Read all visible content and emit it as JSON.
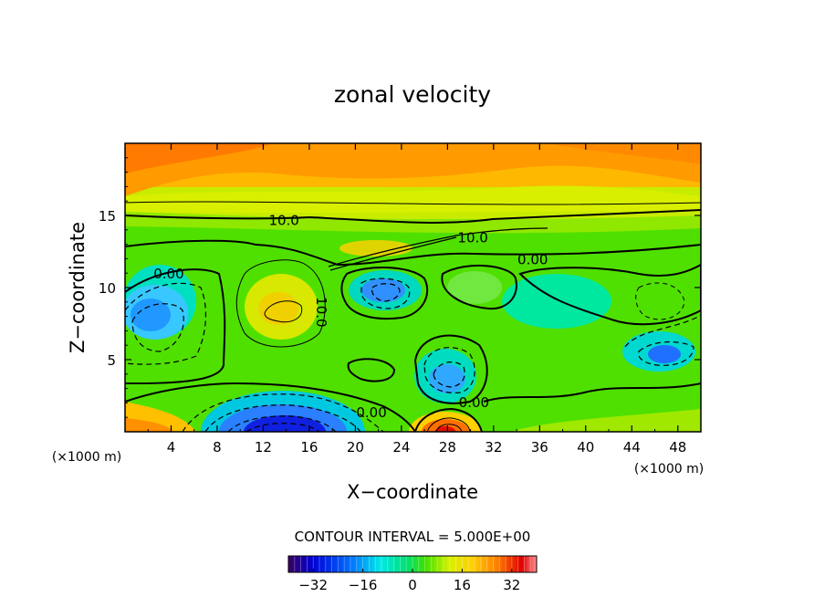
{
  "chart_data": {
    "type": "heatmap",
    "title": "zonal velocity",
    "xlabel": "X−coordinate",
    "ylabel": "Z−coordinate",
    "x_unit": "(×1000 m)",
    "x_unit_right": "(×1000 m)",
    "xlim": [
      0,
      50
    ],
    "ylim": [
      0,
      20
    ],
    "x_ticks": [
      4,
      8,
      12,
      16,
      20,
      24,
      28,
      32,
      36,
      40,
      44,
      48
    ],
    "y_ticks": [
      5,
      10,
      15
    ],
    "contour_interval_label": "CONTOUR INTERVAL = 5.000E+00",
    "contour_interval": 5.0,
    "colorbar": {
      "range": [
        -40,
        40
      ],
      "ticks": [
        -32,
        -16,
        0,
        16,
        32
      ],
      "colors": [
        "#3a0060",
        "#0000d8",
        "#0070ff",
        "#00e8e8",
        "#00e070",
        "#40e000",
        "#d8f000",
        "#ffd000",
        "#ff8000",
        "#e00000",
        "#ff9090"
      ]
    },
    "contour_labels": [
      {
        "text": "10.0",
        "x": 13.8,
        "y": 14.7
      },
      {
        "text": "10.0",
        "x": 30.2,
        "y": 13.5
      },
      {
        "text": "0.00",
        "x": 35.4,
        "y": 12.0
      },
      {
        "text": "0.00",
        "x": 3.8,
        "y": 11.0
      },
      {
        "text": "10.0",
        "x": 17.1,
        "y": 8.3
      },
      {
        "text": "0.00",
        "x": 21.4,
        "y": 1.4
      },
      {
        "text": "0.00",
        "x": 30.3,
        "y": 2.1
      }
    ],
    "features": [
      {
        "kind": "max",
        "x": 27.8,
        "y": 0.2,
        "value": 35
      },
      {
        "kind": "min",
        "x": 13.8,
        "y": 0.3,
        "value": -35
      },
      {
        "kind": "min",
        "x": 2.4,
        "y": 8.4,
        "value": -15
      },
      {
        "kind": "min",
        "x": 22.4,
        "y": 10.0,
        "value": -20
      },
      {
        "kind": "min",
        "x": 28.0,
        "y": 3.5,
        "value": -15
      },
      {
        "kind": "min",
        "x": 46.4,
        "y": 5.4,
        "value": -20
      },
      {
        "kind": "max",
        "x": 2.0,
        "y": 18.5,
        "value": 25
      },
      {
        "kind": "max",
        "x": 47.0,
        "y": 18.5,
        "value": 22
      }
    ]
  }
}
